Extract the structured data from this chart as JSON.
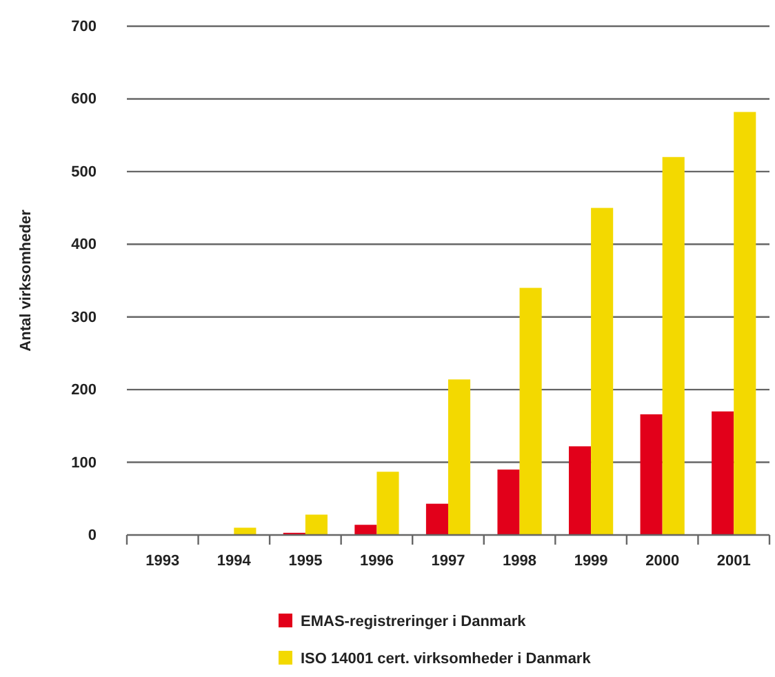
{
  "chart_data": {
    "type": "bar",
    "ylabel": "Antal virksomheder",
    "categories": [
      "1993",
      "1994",
      "1995",
      "1996",
      "1997",
      "1998",
      "1999",
      "2000",
      "2001"
    ],
    "series": [
      {
        "name": "EMAS-registreringer i Danmark",
        "color": "#e2001a",
        "values": [
          0,
          0,
          3,
          14,
          43,
          90,
          122,
          166,
          170
        ]
      },
      {
        "name": "ISO 14001 cert. virksomheder i Danmark",
        "color": "#f3d900",
        "values": [
          0,
          10,
          28,
          87,
          214,
          340,
          450,
          520,
          582
        ]
      }
    ],
    "ylim": [
      0,
      700
    ],
    "yticks": [
      0,
      100,
      200,
      300,
      400,
      500,
      600,
      700
    ],
    "grid": "y",
    "legend": "bottom"
  }
}
